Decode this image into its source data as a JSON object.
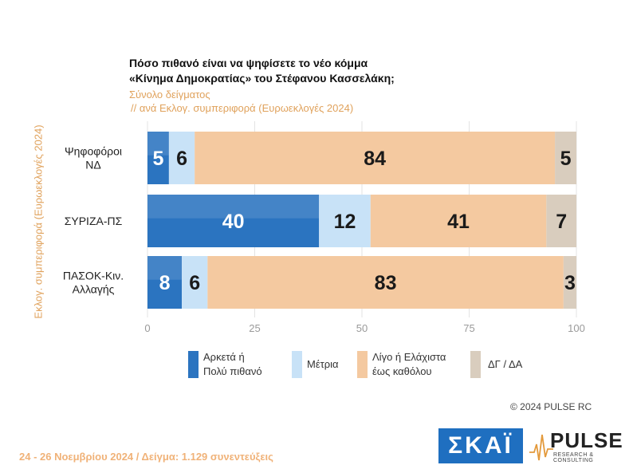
{
  "chart_data": {
    "type": "bar",
    "orientation": "horizontal",
    "stacked": true,
    "title": "Πόσο πιθανό είναι να ψηφίσετε το νέο κόμμα «Κίνημα Δημοκρατίας» του Στέφανου Κασσελάκη;",
    "title_lines": [
      "Πόσο πιθανό είναι να ψηφίσετε το νέο κόμμα",
      "«Κίνημα Δημοκρατίας» του Στέφανου Κασσελάκη;"
    ],
    "subtitle_lines": [
      "Σύνολο δείγματος",
      "// ανά Εκλογ. συμπεριφορά (Ευρωεκλογές 2024)"
    ],
    "ylabel": "Εκλογ. συμπεριφορά (Ευρωεκλογές 2024)",
    "categories": [
      "Ψηφοφόροι ΝΔ",
      "ΣΥΡΙΖΑ-ΠΣ",
      "ΠΑΣΟΚ-Κιν. Αλλαγής"
    ],
    "category_lines": [
      [
        "Ψηφοφόροι",
        "ΝΔ"
      ],
      [
        "ΣΥΡΙΖΑ-ΠΣ"
      ],
      [
        "ΠΑΣΟΚ-Κιν.",
        "Αλλαγής"
      ]
    ],
    "series": [
      {
        "name": "Αρκετά ή Πολύ πιθανό",
        "legend_lines": [
          "Αρκετά ή",
          "Πολύ πιθανό"
        ],
        "color": "#2b74c0",
        "label_color": "#ffffff",
        "values": [
          5,
          40,
          8
        ]
      },
      {
        "name": "Μέτρια",
        "legend_lines": [
          "Μέτρια"
        ],
        "color": "#c8e2f7",
        "label_color": "#1a1a1a",
        "values": [
          6,
          12,
          6
        ]
      },
      {
        "name": "Λίγο ή Ελάχιστα έως καθόλου",
        "legend_lines": [
          "Λίγο ή Ελάχιστα",
          "έως καθόλου"
        ],
        "color": "#f4c9a0",
        "label_color": "#1a1a1a",
        "values": [
          84,
          41,
          83
        ]
      },
      {
        "name": "ΔΓ / ΔΑ",
        "legend_lines": [
          "ΔΓ / ΔΑ"
        ],
        "color": "#d9cdbe",
        "label_color": "#1a1a1a",
        "values": [
          5,
          7,
          3
        ]
      }
    ],
    "xlim": [
      0,
      100
    ],
    "xticks": [
      0,
      25,
      50,
      75,
      100
    ],
    "grid": true,
    "legend_position": "bottom"
  },
  "copyright": "©  2024  PULSE RC",
  "footer": "24 - 26 Νοεμβρίου 2024  /  Δείγμα:  1.129 συνεντεύξεις",
  "logos": {
    "skai": "ΣΚΑΪ",
    "pulse": "PULSE",
    "pulse_sub": "RESEARCH & CONSULTING"
  }
}
